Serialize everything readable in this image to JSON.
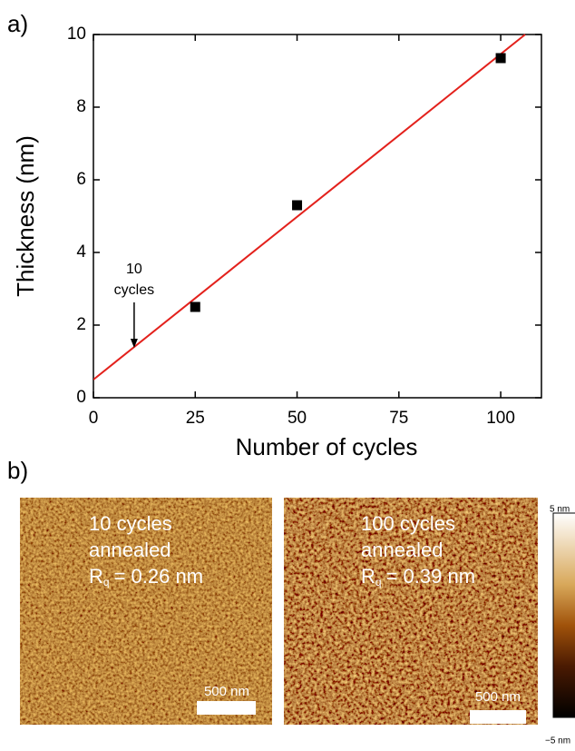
{
  "panel_a_label": "a)",
  "chart_data": {
    "type": "scatter",
    "xlabel": "Number of cycles",
    "ylabel": "Thickness (nm)",
    "x": [
      25,
      50,
      100
    ],
    "values": [
      2.5,
      5.3,
      9.35
    ],
    "color": "#000000",
    "fit": {
      "color": "#e3211c",
      "x": [
        0,
        106
      ],
      "values": [
        0.5,
        10
      ]
    },
    "annotation": {
      "lines": [
        "10",
        "cycles"
      ],
      "x": 10
    },
    "xlim": [
      0,
      110
    ],
    "ylim": [
      0,
      10
    ],
    "xticks": [
      0,
      25,
      50,
      75,
      100
    ],
    "yticks": [
      0,
      2,
      4,
      6,
      8,
      10
    ]
  },
  "panel_b_label": "b)",
  "afm_images": [
    {
      "lines": [
        "10 cycles",
        "annealed"
      ],
      "rq_symbol": "R",
      "rq_sub": "q",
      "rq_value": "= 0.26 nm",
      "scale_bar": "500 nm"
    },
    {
      "lines": [
        "100 cycles",
        "annealed"
      ],
      "rq_symbol": "R",
      "rq_sub": "q",
      "rq_value": "= 0.39 nm",
      "scale_bar": "500 nm"
    }
  ],
  "colorbar": {
    "max_label": "5 nm",
    "min_label": "−5 nm"
  }
}
